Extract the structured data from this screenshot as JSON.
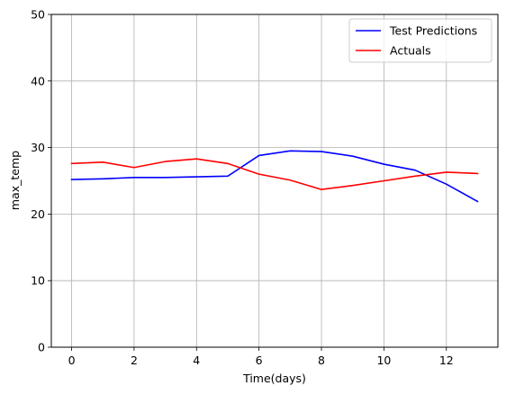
{
  "chart_data": {
    "type": "line",
    "xlabel": "Time(days)",
    "ylabel": "max_temp",
    "xlim": [
      -0.65,
      13.65
    ],
    "ylim": [
      0,
      50
    ],
    "x_ticks": [
      0,
      2,
      4,
      6,
      8,
      10,
      12
    ],
    "y_ticks": [
      0,
      10,
      20,
      30,
      40,
      50
    ],
    "grid": true,
    "legend_position": "top-right",
    "x": [
      0,
      1,
      2,
      3,
      4,
      5,
      6,
      7,
      8,
      9,
      10,
      11,
      12,
      13
    ],
    "series": [
      {
        "name": "Test Predictions",
        "color": "#0000ff",
        "values": [
          25.2,
          25.3,
          25.5,
          25.5,
          25.6,
          25.7,
          28.8,
          29.5,
          29.4,
          28.7,
          27.5,
          26.6,
          24.5,
          21.9
        ]
      },
      {
        "name": "Actuals",
        "color": "#ff0000",
        "values": [
          27.6,
          27.8,
          27.0,
          27.9,
          28.3,
          27.6,
          26.0,
          25.1,
          23.7,
          24.3,
          25.0,
          25.7,
          26.3,
          26.1
        ]
      }
    ]
  }
}
